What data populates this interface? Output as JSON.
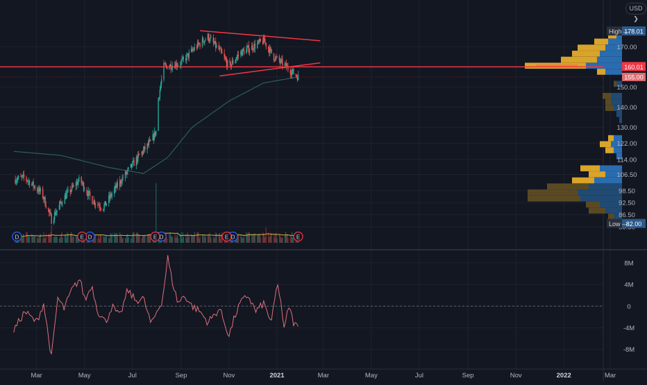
{
  "toolbar": {
    "currency": "USD ❯"
  },
  "colors": {
    "background": "#131722",
    "grid": "#1e222d",
    "up": "#26a69a",
    "down": "#ef5350",
    "ma_line": "#2b5f57",
    "vol_ma": "#d4b13a",
    "oscillator": "#e0707a",
    "trendline": "#f23645",
    "hline": "#f23645",
    "vp_up": "#2a6cb0",
    "vp_down": "#d9a42a",
    "vp_up_outside": "#214a73",
    "vp_down_outside": "#5a4a24",
    "text": "#d1d4dc",
    "axis_text": "#b2b5be"
  },
  "chart_data": [
    {
      "type": "candlestick",
      "x_axis": {
        "ticks": [
          "Mar",
          "May",
          "Jul",
          "Sep",
          "Nov",
          "2021",
          "Mar",
          "May",
          "Jul",
          "Sep",
          "Nov",
          "2022",
          "Mar"
        ]
      },
      "y_axis": {
        "range": [
          80.5,
          182
        ],
        "ticks": [
          170.0,
          150.0,
          140.0,
          130.0,
          122.0,
          114.0,
          106.5,
          98.5,
          92.5,
          86.5,
          80.5
        ],
        "tick_labels": [
          "170.00",
          "150.00",
          "140.00",
          "130.00",
          "122.00",
          "114.00",
          "106.50",
          "98.50",
          "92.50",
          "86.50",
          "80.50"
        ]
      },
      "price_labels": {
        "high": {
          "label": "High",
          "value": "178.01"
        },
        "low": {
          "label": "Low",
          "value": "82.00"
        },
        "horizontal_line": "160.01",
        "last_price": "155.00"
      },
      "price_keypoints": [
        [
          "2020-02-01",
          104
        ],
        [
          "2020-02-15",
          105
        ],
        [
          "2020-03-08",
          97
        ],
        [
          "2020-03-20",
          84
        ],
        [
          "2020-04-05",
          95
        ],
        [
          "2020-04-25",
          104
        ],
        [
          "2020-05-10",
          94
        ],
        [
          "2020-05-25",
          90
        ],
        [
          "2020-06-10",
          100
        ],
        [
          "2020-06-25",
          108
        ],
        [
          "2020-07-10",
          116
        ],
        [
          "2020-07-25",
          123
        ],
        [
          "2020-07-31",
          128
        ],
        [
          "2020-08-01",
          140
        ],
        [
          "2020-08-10",
          160
        ],
        [
          "2020-09-01",
          162
        ],
        [
          "2020-09-20",
          170
        ],
        [
          "2020-10-05",
          175
        ],
        [
          "2020-10-20",
          168
        ],
        [
          "2020-11-01",
          160
        ],
        [
          "2020-11-15",
          167
        ],
        [
          "2020-12-01",
          170
        ],
        [
          "2020-12-15",
          173
        ],
        [
          "2020-12-28",
          165
        ],
        [
          "2021-01-10",
          161
        ],
        [
          "2021-01-28",
          155
        ]
      ],
      "moving_average_keypoints": [
        [
          "2020-02-01",
          118
        ],
        [
          "2020-04-01",
          116
        ],
        [
          "2020-06-01",
          110
        ],
        [
          "2020-07-15",
          107
        ],
        [
          "2020-08-15",
          115
        ],
        [
          "2020-09-15",
          130
        ],
        [
          "2020-11-01",
          143
        ],
        [
          "2020-12-15",
          152
        ],
        [
          "2021-01-28",
          155
        ]
      ],
      "trendlines": [
        {
          "from": [
            "2020-09-25",
            178
          ],
          "to": [
            "2021-02-25",
            173
          ]
        },
        {
          "from": [
            "2020-10-20",
            155.5
          ],
          "to": [
            "2021-02-25",
            162
          ]
        }
      ],
      "earnings_markers": [
        "2020-04-28",
        "2020-07-30",
        "2020-10-29",
        "2021-01-28"
      ],
      "dividend_markers": [
        "2020-02-05",
        "2020-05-08",
        "2020-08-07",
        "2020-11-06"
      ],
      "earnings_label": "E",
      "dividend_label": "D",
      "volume_profile": [
        {
          "price": 175.5,
          "up": 0.2,
          "down": 0.3
        },
        {
          "price": 172.5,
          "up": 0.5,
          "down": 0.5
        },
        {
          "price": 169.5,
          "up": 0.6,
          "down": 1.0
        },
        {
          "price": 166.5,
          "up": 0.8,
          "down": 1.0
        },
        {
          "price": 163.5,
          "up": 0.9,
          "down": 1.3
        },
        {
          "price": 160.5,
          "up": 1.3,
          "down": 2.2
        },
        {
          "price": 157.5,
          "up": 0.6,
          "down": 0.3
        },
        {
          "price": 151.5,
          "up": 0.2,
          "down": 0.1
        },
        {
          "price": 145.5,
          "up": 0.4,
          "down": 0.3
        },
        {
          "price": 142.5,
          "up": 0.4,
          "down": 0.2
        },
        {
          "price": 139.5,
          "up": 0.3,
          "down": 0.3
        },
        {
          "price": 136.5,
          "up": 0.2,
          "down": 0
        },
        {
          "price": 133.5,
          "up": 0.1,
          "down": 0
        },
        {
          "price": 124.5,
          "up": 0.3,
          "down": 0.2
        },
        {
          "price": 121.5,
          "up": 0.4,
          "down": 0.4
        },
        {
          "price": 118.5,
          "up": 0.3,
          "down": 0.3
        },
        {
          "price": 115.5,
          "up": 0.2,
          "down": 0
        },
        {
          "price": 109.5,
          "up": 0.8,
          "down": 0.7
        },
        {
          "price": 106.5,
          "up": 0.6,
          "down": 0.6
        },
        {
          "price": 103.5,
          "up": 1.0,
          "down": 0.8
        },
        {
          "price": 100.5,
          "up": 1.2,
          "down": 1.5
        },
        {
          "price": 97.5,
          "up": 1.6,
          "down": 1.8
        },
        {
          "price": 94.5,
          "up": 1.5,
          "down": 1.9
        },
        {
          "price": 91.5,
          "up": 0.8,
          "down": 0.5
        },
        {
          "price": 88.5,
          "up": 0.6,
          "down": 0.6
        },
        {
          "price": 85.5,
          "up": 0.3,
          "down": 0.2
        }
      ]
    },
    {
      "type": "line",
      "y_axis": {
        "range": [
          -9.5,
          11
        ],
        "ticks": [
          8,
          4,
          0,
          -4,
          -8
        ],
        "tick_labels": [
          "8M",
          "4M",
          "0",
          "-4M",
          "-8M"
        ]
      },
      "zero_line": 0,
      "keypoints": [
        [
          "2020-02-01",
          -4.5
        ],
        [
          "2020-02-15",
          -1
        ],
        [
          "2020-03-01",
          -3
        ],
        [
          "2020-03-10",
          0.5
        ],
        [
          "2020-03-20",
          -9.5
        ],
        [
          "2020-03-28",
          1.5
        ],
        [
          "2020-04-05",
          -0.5
        ],
        [
          "2020-04-15",
          3
        ],
        [
          "2020-04-25",
          5
        ],
        [
          "2020-05-02",
          1
        ],
        [
          "2020-05-10",
          4
        ],
        [
          "2020-05-18",
          -1
        ],
        [
          "2020-05-28",
          -3
        ],
        [
          "2020-06-05",
          0
        ],
        [
          "2020-06-15",
          -2
        ],
        [
          "2020-06-25",
          3
        ],
        [
          "2020-07-05",
          1
        ],
        [
          "2020-07-15",
          1.5
        ],
        [
          "2020-07-25",
          -3.5
        ],
        [
          "2020-08-01",
          -1
        ],
        [
          "2020-08-08",
          1
        ],
        [
          "2020-08-15",
          9
        ],
        [
          "2020-08-20",
          5
        ],
        [
          "2020-08-28",
          0.5
        ],
        [
          "2020-09-05",
          2
        ],
        [
          "2020-09-15",
          0
        ],
        [
          "2020-09-25",
          -1
        ],
        [
          "2020-10-05",
          -3
        ],
        [
          "2020-10-20",
          -0.5
        ],
        [
          "2020-11-01",
          -5.5
        ],
        [
          "2020-11-08",
          -2
        ],
        [
          "2020-11-15",
          0.5
        ],
        [
          "2020-11-25",
          2
        ],
        [
          "2020-12-05",
          -1
        ],
        [
          "2020-12-15",
          0.5
        ],
        [
          "2020-12-25",
          -3
        ],
        [
          "2021-01-01",
          4
        ],
        [
          "2021-01-05",
          2
        ],
        [
          "2021-01-10",
          -4.5
        ],
        [
          "2021-01-16",
          0
        ],
        [
          "2021-01-22",
          -3
        ],
        [
          "2021-01-28",
          -4
        ]
      ]
    }
  ]
}
